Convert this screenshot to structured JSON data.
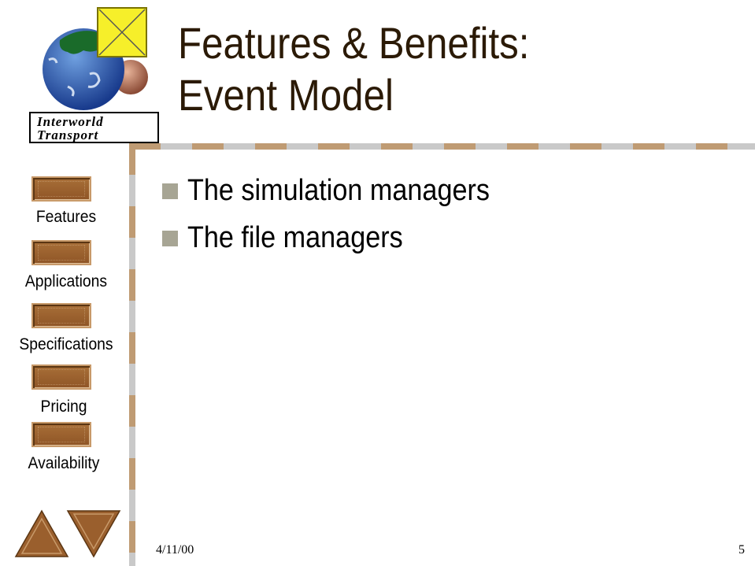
{
  "slide": {
    "title_line1": "Features & Benefits:",
    "title_line2": "Event Model",
    "date": "4/11/00",
    "page_number": "5"
  },
  "logo": {
    "line1": "Interworld",
    "line2": "Transport"
  },
  "bullets": [
    "The simulation managers",
    "The file managers"
  ],
  "nav": {
    "items": [
      "Features",
      "Applications",
      "Specifications",
      "Pricing",
      "Availability"
    ],
    "prev_icon": "triangle-up-icon",
    "next_icon": "triangle-down-icon"
  },
  "colors": {
    "button_brown": "#9a5f2d",
    "rail_tan": "#bf9b73",
    "rail_gray": "#c9c9c9",
    "bullet_gray": "#a7a594",
    "title_brown": "#2b1a06"
  }
}
